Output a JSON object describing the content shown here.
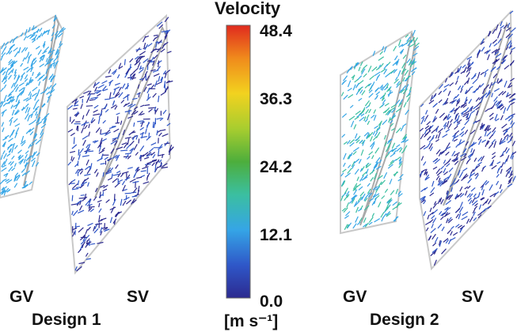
{
  "chart_data": {
    "type": "heatmap",
    "title": "Velocity",
    "unit": "[m s⁻¹]",
    "colorbar": {
      "min": 0.0,
      "max": 48.4,
      "ticks": [
        "48.4",
        "36.3",
        "24.2",
        "12.1",
        "0.0"
      ],
      "colormap": [
        "#2c2a8f",
        "#2f57c8",
        "#35a5e6",
        "#3bbfa0",
        "#4dae3c",
        "#a7cd2f",
        "#f2d21f",
        "#f08a1c",
        "#e02a1e"
      ]
    },
    "panels": [
      {
        "name": "Design 1",
        "blade_labels": [
          "GV",
          "SV"
        ]
      },
      {
        "name": "Design 2",
        "blade_labels": [
          "GV",
          "SV"
        ]
      }
    ]
  }
}
